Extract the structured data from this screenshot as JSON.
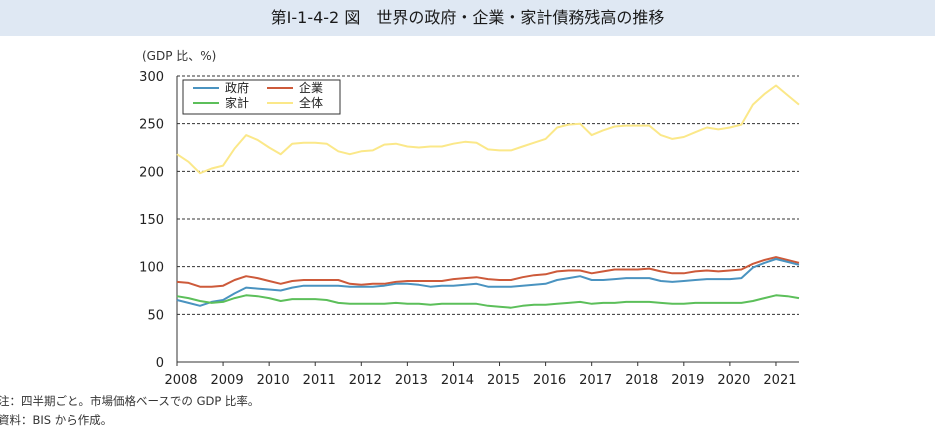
{
  "title": "第Ⅰ-1-4-2 図　世界の政府・企業・家計債務残高の推移",
  "notes": [
    "注：四半期ごと。市場価格ベースでの GDP 比率。",
    "資料：BIS から作成。"
  ],
  "chart_data": {
    "type": "line",
    "ylabel": "(GDP 比、%)",
    "ylim": [
      0,
      300
    ],
    "yticks": [
      0,
      50,
      100,
      150,
      200,
      250,
      300
    ],
    "xlim": [
      2008,
      2021.5
    ],
    "xticks": [
      "2008",
      "2009",
      "2010",
      "2011",
      "2012",
      "2013",
      "2014",
      "2015",
      "2016",
      "2017",
      "2018",
      "2019",
      "2020",
      "2021"
    ],
    "grid": "horizontal dashed",
    "legend_position": "top-left",
    "x": [
      2008.0,
      2008.25,
      2008.5,
      2008.75,
      2009.0,
      2009.25,
      2009.5,
      2009.75,
      2010.0,
      2010.25,
      2010.5,
      2010.75,
      2011.0,
      2011.25,
      2011.5,
      2011.75,
      2012.0,
      2012.25,
      2012.5,
      2012.75,
      2013.0,
      2013.25,
      2013.5,
      2013.75,
      2014.0,
      2014.25,
      2014.5,
      2014.75,
      2015.0,
      2015.25,
      2015.5,
      2015.75,
      2016.0,
      2016.25,
      2016.5,
      2016.75,
      2017.0,
      2017.25,
      2017.5,
      2017.75,
      2018.0,
      2018.25,
      2018.5,
      2018.75,
      2019.0,
      2019.25,
      2019.5,
      2019.75,
      2020.0,
      2020.25,
      2020.5,
      2020.75,
      2021.0,
      2021.25,
      2021.5
    ],
    "series": [
      {
        "name": "政府",
        "color": "#4a93c0",
        "values": [
          65,
          62,
          59,
          63,
          65,
          72,
          78,
          77,
          76,
          75,
          78,
          80,
          80,
          80,
          80,
          79,
          79,
          79,
          80,
          82,
          82,
          81,
          79,
          80,
          80,
          81,
          82,
          79,
          79,
          79,
          80,
          81,
          82,
          86,
          88,
          90,
          86,
          86,
          87,
          88,
          88,
          88,
          85,
          84,
          85,
          86,
          87,
          87,
          87,
          88,
          99,
          104,
          108,
          105,
          102
        ]
      },
      {
        "name": "企業",
        "color": "#cd5a3a",
        "values": [
          84,
          83,
          79,
          79,
          80,
          86,
          90,
          88,
          85,
          82,
          85,
          86,
          86,
          86,
          86,
          82,
          81,
          82,
          82,
          84,
          85,
          85,
          85,
          85,
          87,
          88,
          89,
          87,
          86,
          86,
          89,
          91,
          92,
          95,
          96,
          96,
          93,
          95,
          97,
          97,
          97,
          98,
          95,
          93,
          93,
          95,
          96,
          95,
          96,
          97,
          103,
          107,
          110,
          107,
          104
        ]
      },
      {
        "name": "家計",
        "color": "#5cbf5a",
        "values": [
          69,
          67,
          64,
          62,
          63,
          67,
          70,
          69,
          67,
          64,
          66,
          66,
          66,
          65,
          62,
          61,
          61,
          61,
          61,
          62,
          61,
          61,
          60,
          61,
          61,
          61,
          61,
          59,
          58,
          57,
          59,
          60,
          60,
          61,
          62,
          63,
          61,
          62,
          62,
          63,
          63,
          63,
          62,
          61,
          61,
          62,
          62,
          62,
          62,
          62,
          64,
          67,
          70,
          69,
          67
        ]
      },
      {
        "name": "全体",
        "color": "#fbe889",
        "values": [
          218,
          210,
          198,
          203,
          206,
          224,
          238,
          233,
          225,
          218,
          229,
          230,
          230,
          229,
          221,
          218,
          221,
          222,
          228,
          229,
          226,
          225,
          226,
          226,
          229,
          231,
          230,
          223,
          222,
          222,
          226,
          230,
          234,
          246,
          249,
          250,
          238,
          243,
          247,
          248,
          248,
          248,
          238,
          234,
          236,
          241,
          246,
          244,
          246,
          249,
          270,
          281,
          290,
          280,
          270
        ]
      }
    ]
  }
}
